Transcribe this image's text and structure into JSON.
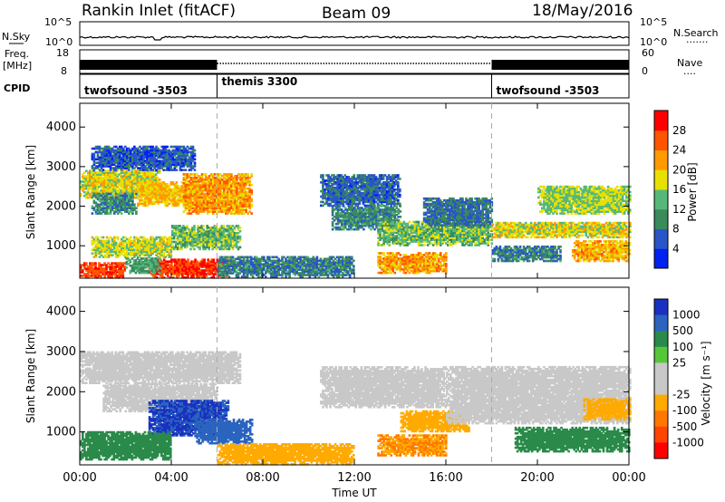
{
  "header": {
    "title": "Rankin Inlet (fitACF)",
    "beam": "Beam 09",
    "date": "18/May/2016"
  },
  "nsky_panel": {
    "left_label": "N.Sky",
    "right_label": "N.Search",
    "left_ticks": [
      "10^5",
      "10^0"
    ],
    "right_ticks": [
      "10^5",
      "10^0"
    ],
    "right_dots": "·······"
  },
  "freq_panel": {
    "left_label_1": "Freq.",
    "left_label_2": "[MHz]",
    "left_ticks": [
      "18",
      "8"
    ],
    "right_label": "Nave",
    "right_ticks": [
      "60",
      "0"
    ],
    "right_dots": "····"
  },
  "cpid_panel": {
    "label": "CPID",
    "segments": [
      {
        "name": "twofsound -3503",
        "start_hour": 0,
        "end_hour": 6
      },
      {
        "name": "themis 3300",
        "start_hour": 6,
        "end_hour": 18
      },
      {
        "name": "twofsound -3503",
        "start_hour": 18,
        "end_hour": 24
      }
    ]
  },
  "colors": {
    "power": [
      "#0022ee",
      "#2a55c8",
      "#3a8a5c",
      "#55b87a",
      "#e8e000",
      "#ff9a00",
      "#ff5500",
      "#ff0000"
    ],
    "velocity": [
      "#1a30c0",
      "#2a64bf",
      "#2a8a4a",
      "#55c83a",
      "#c8c8c8",
      "#c8c8c8",
      "#ffaa00",
      "#ff7700",
      "#ff4400",
      "#ff0000"
    ]
  },
  "chart_data": [
    {
      "type": "heatmap",
      "name": "power",
      "ylabel": "Slant Range [km]",
      "xlabel": "",
      "ylim": [
        180,
        4600
      ],
      "xlim": [
        0,
        24
      ],
      "yticks": [
        "1000",
        "2000",
        "3000",
        "4000"
      ],
      "colorbar": {
        "label": "Power [dB]",
        "ticks": [
          "4",
          "8",
          "12",
          "16",
          "20",
          "24",
          "28"
        ],
        "min": 0,
        "max": 32
      },
      "regions": [
        {
          "h0": 0,
          "h1": 3.5,
          "r0": 2200,
          "r1": 2900,
          "level": 18
        },
        {
          "h0": 0.5,
          "h1": 2.5,
          "r0": 1800,
          "r1": 2300,
          "level": 10
        },
        {
          "h0": 2.5,
          "h1": 5,
          "r0": 2000,
          "r1": 2600,
          "level": 20
        },
        {
          "h0": 4.5,
          "h1": 7.5,
          "r0": 1800,
          "r1": 2800,
          "level": 22
        },
        {
          "h0": 0.5,
          "h1": 4,
          "r0": 700,
          "r1": 1200,
          "level": 17
        },
        {
          "h0": 4,
          "h1": 7,
          "r0": 900,
          "r1": 1500,
          "level": 14
        },
        {
          "h0": 0,
          "h1": 2,
          "r0": 180,
          "r1": 550,
          "level": 28
        },
        {
          "h0": 3,
          "h1": 6.5,
          "r0": 180,
          "r1": 650,
          "level": 28
        },
        {
          "h0": 2,
          "h1": 3.5,
          "r0": 300,
          "r1": 700,
          "level": 12
        },
        {
          "h0": 6,
          "h1": 12,
          "r0": 200,
          "r1": 700,
          "level": 9
        },
        {
          "h0": 10.5,
          "h1": 14,
          "r0": 2000,
          "r1": 2800,
          "level": 7
        },
        {
          "h0": 11,
          "h1": 14,
          "r0": 1400,
          "r1": 2000,
          "level": 10
        },
        {
          "h0": 13,
          "h1": 18,
          "r0": 1000,
          "r1": 1600,
          "level": 14
        },
        {
          "h0": 13,
          "h1": 16,
          "r0": 300,
          "r1": 800,
          "level": 22
        },
        {
          "h0": 15,
          "h1": 18,
          "r0": 1500,
          "r1": 2200,
          "level": 8
        },
        {
          "h0": 18,
          "h1": 24,
          "r0": 1200,
          "r1": 1600,
          "level": 18
        },
        {
          "h0": 20,
          "h1": 24,
          "r0": 1800,
          "r1": 2500,
          "level": 16
        },
        {
          "h0": 21.5,
          "h1": 24,
          "r0": 600,
          "r1": 1100,
          "level": 21
        },
        {
          "h0": 18,
          "h1": 21,
          "r0": 600,
          "r1": 1000,
          "level": 9
        },
        {
          "h0": 0.5,
          "h1": 5,
          "r0": 2900,
          "r1": 3500,
          "level": 6
        }
      ]
    },
    {
      "type": "heatmap",
      "name": "velocity",
      "ylabel": "Slant Range [km]",
      "xlabel": "Time UT",
      "ylim": [
        180,
        4600
      ],
      "xlim": [
        0,
        24
      ],
      "xticks": [
        "00:00",
        "04:00",
        "08:00",
        "12:00",
        "16:00",
        "20:00",
        "00:00"
      ],
      "yticks": [
        "1000",
        "2000",
        "3000",
        "4000"
      ],
      "colorbar": {
        "label": "Velocity [m s⁻¹]",
        "ticks": [
          "1000",
          "500",
          "100",
          "25",
          "-25",
          "-100",
          "-500",
          "-1000"
        ]
      },
      "regions": [
        {
          "h0": 0,
          "h1": 7,
          "r0": 2200,
          "r1": 3000,
          "level": 0
        },
        {
          "h0": 1,
          "h1": 6,
          "r0": 1500,
          "r1": 2200,
          "level": 0
        },
        {
          "h0": 3,
          "h1": 6.5,
          "r0": 900,
          "r1": 1800,
          "level": 800
        },
        {
          "h0": 0,
          "h1": 4,
          "r0": 300,
          "r1": 1000,
          "level": 150
        },
        {
          "h0": 5,
          "h1": 7.5,
          "r0": 700,
          "r1": 1300,
          "level": 400
        },
        {
          "h0": 6,
          "h1": 12,
          "r0": 180,
          "r1": 700,
          "level": -150
        },
        {
          "h0": 10.5,
          "h1": 16,
          "r0": 1600,
          "r1": 2600,
          "level": 0
        },
        {
          "h0": 13,
          "h1": 16,
          "r0": 400,
          "r1": 900,
          "level": -300
        },
        {
          "h0": 14,
          "h1": 17,
          "r0": 1000,
          "r1": 1500,
          "level": -120
        },
        {
          "h0": 16,
          "h1": 24,
          "r0": 1200,
          "r1": 2600,
          "level": 0
        },
        {
          "h0": 19,
          "h1": 24,
          "r0": 500,
          "r1": 1100,
          "level": 150
        },
        {
          "h0": 22,
          "h1": 24,
          "r0": 1300,
          "r1": 1800,
          "level": -150
        }
      ]
    }
  ]
}
